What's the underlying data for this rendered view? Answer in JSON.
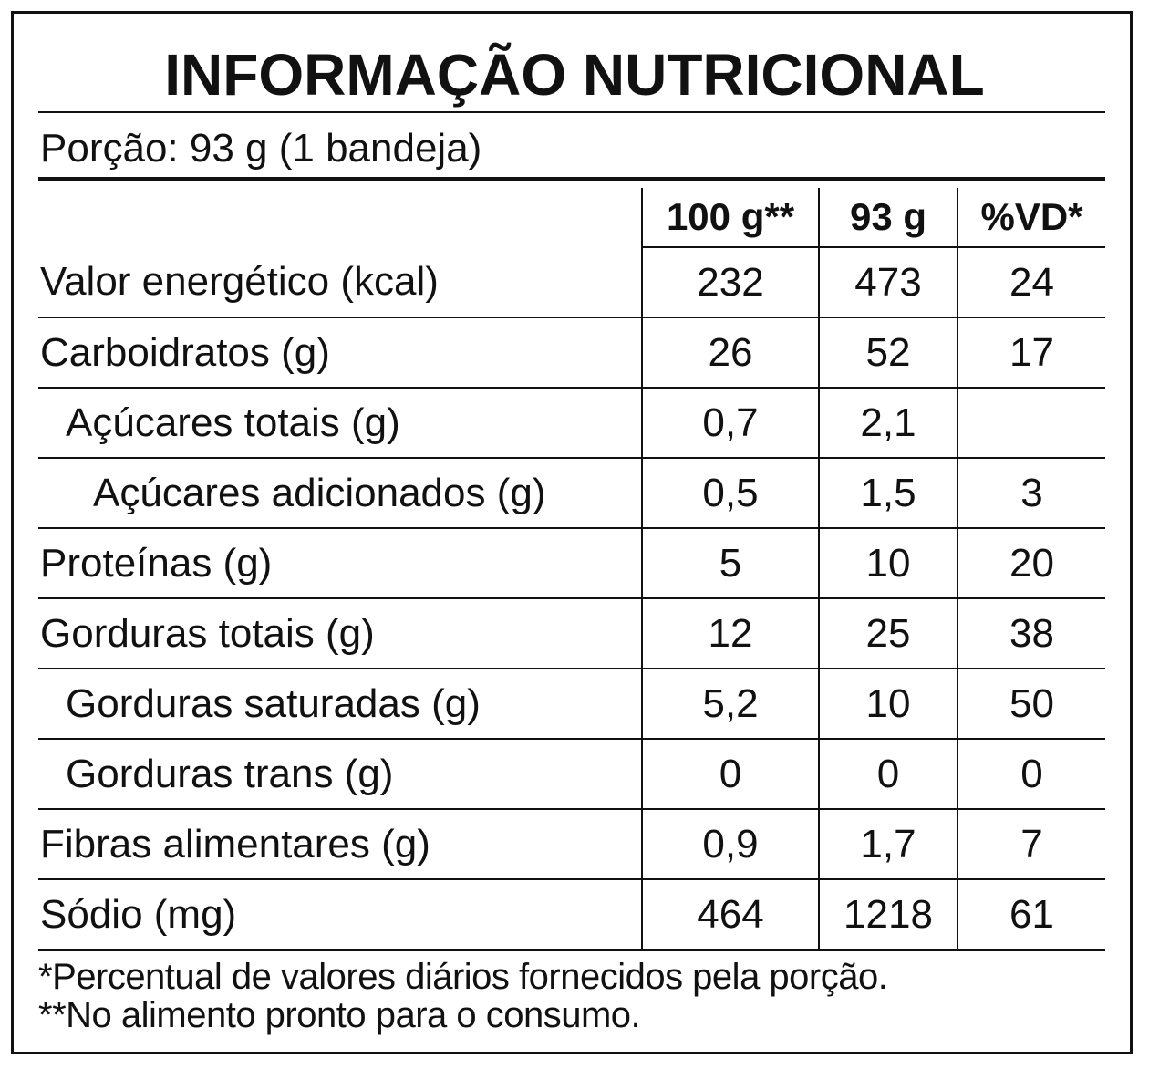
{
  "title": "INFORMAÇÃO NUTRICIONAL",
  "portion": "Porção: 93 g (1 bandeja)",
  "columns": {
    "per100": "100 g**",
    "per_portion": "93 g",
    "dv": "%VD*"
  },
  "rows": [
    {
      "label": "Valor energético (kcal)",
      "indent": 0,
      "per100": "232",
      "per_portion": "473",
      "dv": "24"
    },
    {
      "label": "Carboidratos (g)",
      "indent": 0,
      "per100": "26",
      "per_portion": "52",
      "dv": "17"
    },
    {
      "label": "Açúcares totais (g)",
      "indent": 1,
      "per100": "0,7",
      "per_portion": "2,1",
      "dv": ""
    },
    {
      "label": "Açúcares adicionados (g)",
      "indent": 2,
      "per100": "0,5",
      "per_portion": "1,5",
      "dv": "3"
    },
    {
      "label": "Proteínas (g)",
      "indent": 0,
      "per100": "5",
      "per_portion": "10",
      "dv": "20"
    },
    {
      "label": "Gorduras totais (g)",
      "indent": 0,
      "per100": "12",
      "per_portion": "25",
      "dv": "38"
    },
    {
      "label": "Gorduras saturadas (g)",
      "indent": 1,
      "per100": "5,2",
      "per_portion": "10",
      "dv": "50"
    },
    {
      "label": "Gorduras trans (g)",
      "indent": 1,
      "per100": "0",
      "per_portion": "0",
      "dv": "0"
    },
    {
      "label": "Fibras alimentares (g)",
      "indent": 0,
      "per100": "0,9",
      "per_portion": "1,7",
      "dv": "7"
    },
    {
      "label": "Sódio (mg)",
      "indent": 0,
      "per100": "464",
      "per_portion": "1218",
      "dv": "61"
    }
  ],
  "footnotes": [
    "*Percentual de valores diários fornecidos pela porção.",
    "**No alimento pronto para o consumo."
  ]
}
